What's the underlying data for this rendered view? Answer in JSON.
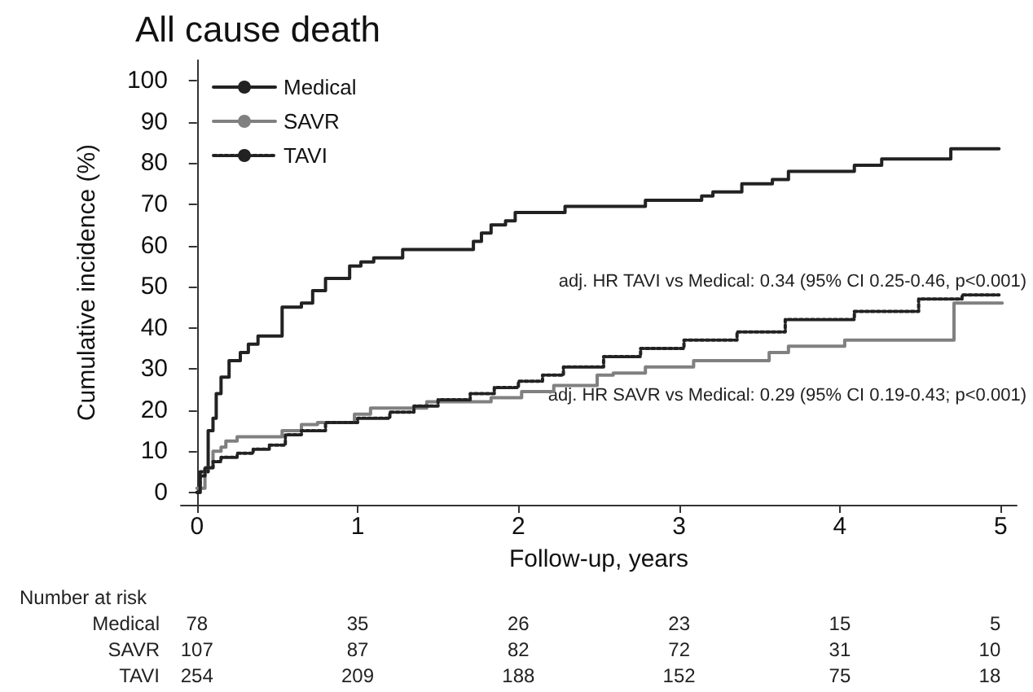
{
  "chart_data": {
    "type": "step",
    "title": "All cause death",
    "xlabel": "Follow-up, years",
    "ylabel": "Cumulative incidence (%)",
    "xlim": [
      -0.1,
      5.1
    ],
    "xticks": [
      0,
      1,
      2,
      3,
      4,
      5
    ],
    "ylim": [
      -3,
      105
    ],
    "yticks": [
      0,
      10,
      20,
      30,
      40,
      50,
      60,
      70,
      80,
      90,
      100
    ],
    "grid": false,
    "legend": "top left",
    "marker": "none",
    "series": [
      {
        "name": "Medical",
        "color": "#222222",
        "line_style": "solid",
        "x": [
          0,
          0.02,
          0.07,
          0.1,
          0.12,
          0.15,
          0.2,
          0.27,
          0.32,
          0.38,
          0.53,
          0.65,
          0.72,
          0.8,
          0.95,
          1.02,
          1.1,
          1.28,
          1.72,
          1.77,
          1.83,
          1.92,
          1.98,
          2.29,
          2.79,
          3.14,
          3.21,
          3.39,
          3.58,
          3.68,
          4.09,
          4.26,
          4.69,
          4.99
        ],
        "values": [
          0,
          5,
          15,
          18,
          24,
          28,
          32,
          34,
          36,
          38,
          45,
          46,
          49,
          52,
          55,
          56,
          57,
          59,
          61,
          63,
          65,
          66,
          68,
          69.5,
          71,
          72,
          73,
          75,
          76,
          78,
          79.5,
          81,
          83.5,
          83.5
        ]
      },
      {
        "name": "SAVR",
        "color": "#808080",
        "line_style": "solid",
        "x": [
          0,
          0.05,
          0.1,
          0.15,
          0.18,
          0.25,
          0.53,
          0.65,
          0.75,
          0.98,
          1.08,
          1.43,
          1.83,
          2.02,
          2.22,
          2.49,
          2.59,
          2.79,
          3.09,
          3.56,
          3.68,
          4.03,
          4.71,
          5.01
        ],
        "values": [
          1,
          6,
          10,
          11,
          12.5,
          13.5,
          15,
          16.5,
          17,
          19,
          20.5,
          22,
          23,
          24.5,
          26,
          28.5,
          29,
          30.5,
          32,
          34,
          35.5,
          37,
          46,
          46
        ]
      },
      {
        "name": "TAVI",
        "color": "#222222",
        "line_style": "dotted",
        "x": [
          0,
          0.02,
          0.05,
          0.1,
          0.15,
          0.25,
          0.35,
          0.45,
          0.55,
          0.65,
          0.8,
          1.0,
          1.2,
          1.35,
          1.5,
          1.7,
          1.85,
          2.0,
          2.15,
          2.28,
          2.53,
          2.76,
          3.03,
          3.36,
          3.66,
          4.09,
          4.49,
          4.76,
          4.99
        ],
        "values": [
          0,
          4,
          6,
          7.5,
          8.5,
          9.5,
          10.5,
          11.5,
          14,
          15,
          17,
          18,
          19.5,
          21,
          22.5,
          24,
          25.5,
          27,
          28.5,
          30.5,
          33,
          35,
          37,
          39,
          42,
          44,
          47,
          48,
          48
        ]
      }
    ],
    "annotations": [
      "adj. HR TAVI vs Medical: 0.34 (95% CI 0.25-0.46, p<0.001)",
      "adj. HR SAVR vs Medical: 0.29 (95% CI 0.19-0.43; p<0.001)",
      "Number at risk",
      "Medical 78 35 26 23 15 5",
      "SAVR 107 87 82 72 31 10",
      "TAVI 254 209 188 152 75 18"
    ]
  }
}
